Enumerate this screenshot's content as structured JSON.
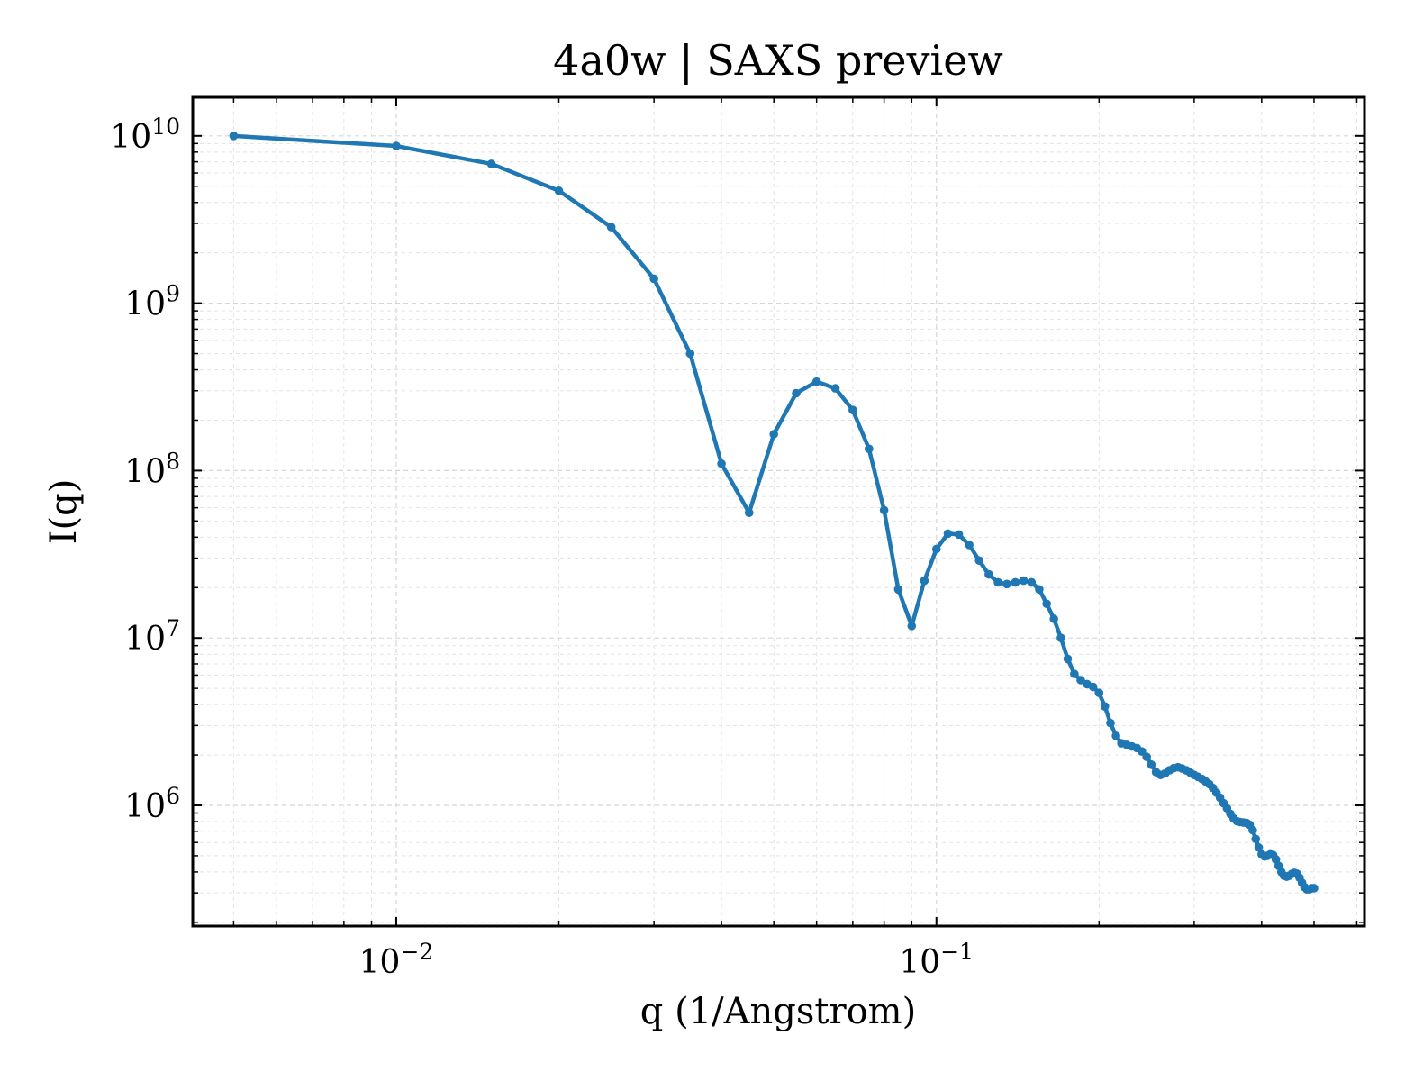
{
  "chart_data": {
    "type": "line",
    "title": "4a0w | SAXS preview",
    "xlabel": "q (1/Angstrom)",
    "ylabel": "I(q)",
    "xscale": "log",
    "yscale": "log",
    "xlim": [
      0.0042,
      0.62
    ],
    "ylim": [
      190000,
      17000000000
    ],
    "grid": true,
    "legend": "none",
    "x_ticks": [
      {
        "value": 0.01,
        "base": "10",
        "exp": "−2"
      },
      {
        "value": 0.1,
        "base": "10",
        "exp": "−1"
      }
    ],
    "y_ticks": [
      {
        "value": 1000000.0,
        "base": "10",
        "exp": "6"
      },
      {
        "value": 10000000.0,
        "base": "10",
        "exp": "7"
      },
      {
        "value": 100000000.0,
        "base": "10",
        "exp": "8"
      },
      {
        "value": 1000000000.0,
        "base": "10",
        "exp": "9"
      },
      {
        "value": 10000000000.0,
        "base": "10",
        "exp": "10"
      }
    ],
    "series": [
      {
        "color": "#1f77b4",
        "marker": "circle",
        "x": [
          0.005,
          0.01,
          0.015,
          0.02,
          0.025,
          0.03,
          0.035,
          0.04,
          0.045,
          0.05,
          0.055,
          0.06,
          0.065,
          0.07,
          0.075,
          0.08,
          0.085,
          0.09,
          0.095,
          0.1,
          0.105,
          0.11,
          0.115,
          0.12,
          0.125,
          0.13,
          0.135,
          0.14,
          0.145,
          0.15,
          0.155,
          0.16,
          0.165,
          0.17,
          0.175,
          0.18,
          0.185,
          0.19,
          0.195,
          0.2,
          0.205,
          0.21,
          0.215,
          0.22,
          0.225,
          0.23,
          0.235,
          0.24,
          0.245,
          0.25,
          0.255,
          0.26,
          0.265,
          0.27,
          0.275,
          0.28,
          0.285,
          0.29,
          0.295,
          0.3,
          0.305,
          0.31,
          0.315,
          0.32,
          0.325,
          0.33,
          0.335,
          0.34,
          0.345,
          0.35,
          0.355,
          0.36,
          0.365,
          0.37,
          0.375,
          0.38,
          0.385,
          0.39,
          0.395,
          0.4,
          0.405,
          0.41,
          0.415,
          0.42,
          0.425,
          0.43,
          0.435,
          0.44,
          0.445,
          0.45,
          0.455,
          0.46,
          0.465,
          0.47,
          0.475,
          0.48,
          0.485,
          0.49,
          0.495,
          0.5
        ],
        "y": [
          10000000000.0,
          8700000000.0,
          6800000000.0,
          4700000000.0,
          2850000000.0,
          1400000000.0,
          500000000.0,
          110000000.0,
          56000000.0,
          165000000.0,
          290000000.0,
          340000000.0,
          310000000.0,
          230000000.0,
          135000000.0,
          58000000.0,
          19500000.0,
          11800000.0,
          22000000.0,
          34000000.0,
          42000000.0,
          41500000.0,
          36000000.0,
          29000000.0,
          24000000.0,
          21500000.0,
          21000000.0,
          21500000.0,
          22000000.0,
          21500000.0,
          19500000.0,
          16000000.0,
          13000000.0,
          10000000.0,
          7500000.0,
          6100000.0,
          5600000.0,
          5300000.0,
          5100000.0,
          4700000.0,
          3900000.0,
          3100000.0,
          2600000.0,
          2350000.0,
          2300000.0,
          2250000.0,
          2200000.0,
          2100000.0,
          1950000.0,
          1750000.0,
          1580000.0,
          1520000.0,
          1550000.0,
          1620000.0,
          1670000.0,
          1690000.0,
          1660000.0,
          1620000.0,
          1570000.0,
          1520000.0,
          1480000.0,
          1440000.0,
          1390000.0,
          1340000.0,
          1270000.0,
          1190000.0,
          1110000.0,
          1030000.0,
          960000.0,
          890000.0,
          835000.0,
          805000.0,
          795000.0,
          790000.0,
          785000.0,
          765000.0,
          710000.0,
          630000.0,
          560000.0,
          510000.0,
          495000.0,
          500000.0,
          510000.0,
          505000.0,
          475000.0,
          435000.0,
          400000.0,
          380000.0,
          375000.0,
          380000.0,
          390000.0,
          395000.0,
          390000.0,
          370000.0,
          345000.0,
          325000.0,
          315000.0,
          315000.0,
          320000.0,
          320000.0
        ]
      }
    ]
  }
}
